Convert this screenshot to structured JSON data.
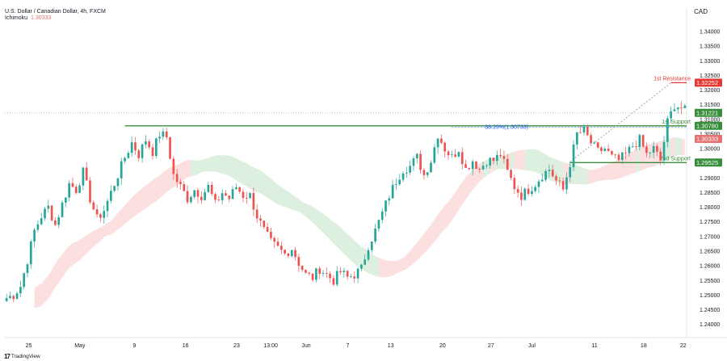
{
  "header": {
    "symbol_line": "U.S. Dollar / Canadian Dollar, 4h, FXCM",
    "indicator_name": "Ichimoku",
    "indicator_value": "1.30333"
  },
  "axis": {
    "currency": "CAD"
  },
  "brand": {
    "name": "TradingView"
  },
  "colors": {
    "up_candle": "#26a69a",
    "down_candle": "#ef5350",
    "support": "#388e3c",
    "resistance": "#e53935",
    "cloud_green": "#d7ecd9",
    "cloud_red": "#fbdada",
    "current_price_tag": "#388e3c",
    "ichimoku_tag": "#e57373"
  },
  "chart_data": {
    "type": "candlestick",
    "title": "U.S. Dollar / Canadian Dollar, 4h, FXCM",
    "ylabel": "CAD",
    "ylim": [
      1.2355,
      1.348
    ],
    "y_ticks": [
      1.34,
      1.335,
      1.33,
      1.325,
      1.32,
      1.315,
      1.31,
      1.305,
      1.3,
      1.295,
      1.29,
      1.285,
      1.28,
      1.275,
      1.27,
      1.265,
      1.26,
      1.255,
      1.25,
      1.245,
      1.24
    ],
    "y_tick_labels": [
      "1.34000",
      "1.33500",
      "1.33000",
      "1.32500",
      "1.32000",
      "1.31500",
      "1.31000",
      "1.30500",
      "1.30000",
      "1.29500",
      "1.29000",
      "1.28500",
      "1.28000",
      "1.27500",
      "1.27000",
      "1.26500",
      "1.26000",
      "1.25500",
      "1.25000",
      "1.24500",
      "1.24000"
    ],
    "x_ticks": [
      "25",
      "May",
      "9",
      "16",
      "23",
      "13:00",
      "Jun",
      "7",
      "13",
      "20",
      "27",
      "Jul",
      "11",
      "18",
      "22"
    ],
    "price_path": [
      [
        0,
        1.249
      ],
      [
        2,
        1.25
      ],
      [
        4,
        1.253
      ],
      [
        6,
        1.262
      ],
      [
        8,
        1.272
      ],
      [
        10,
        1.277
      ],
      [
        12,
        1.28
      ],
      [
        14,
        1.274
      ],
      [
        16,
        1.281
      ],
      [
        18,
        1.288
      ],
      [
        20,
        1.286
      ],
      [
        22,
        1.292
      ],
      [
        24,
        1.283
      ],
      [
        26,
        1.276
      ],
      [
        28,
        1.279
      ],
      [
        30,
        1.285
      ],
      [
        32,
        1.291
      ],
      [
        34,
        1.297
      ],
      [
        36,
        1.302
      ],
      [
        38,
        1.298
      ],
      [
        40,
        1.303
      ],
      [
        42,
        1.299
      ],
      [
        44,
        1.305
      ],
      [
        46,
        1.304
      ],
      [
        48,
        1.291
      ],
      [
        50,
        1.287
      ],
      [
        52,
        1.283
      ],
      [
        54,
        1.286
      ],
      [
        56,
        1.284
      ],
      [
        58,
        1.287
      ],
      [
        60,
        1.281
      ],
      [
        62,
        1.285
      ],
      [
        64,
        1.283
      ],
      [
        66,
        1.287
      ],
      [
        68,
        1.284
      ],
      [
        70,
        1.284
      ],
      [
        72,
        1.277
      ],
      [
        74,
        1.272
      ],
      [
        76,
        1.268
      ],
      [
        78,
        1.266
      ],
      [
        80,
        1.264
      ],
      [
        82,
        1.266
      ],
      [
        84,
        1.261
      ],
      [
        86,
        1.257
      ],
      [
        88,
        1.256
      ],
      [
        90,
        1.259
      ],
      [
        92,
        1.257
      ],
      [
        94,
        1.255
      ],
      [
        96,
        1.258
      ],
      [
        98,
        1.256
      ],
      [
        100,
        1.257
      ],
      [
        102,
        1.259
      ],
      [
        104,
        1.267
      ],
      [
        106,
        1.272
      ],
      [
        108,
        1.278
      ],
      [
        110,
        1.284
      ],
      [
        112,
        1.289
      ],
      [
        114,
        1.293
      ],
      [
        116,
        1.294
      ],
      [
        118,
        1.297
      ],
      [
        120,
        1.291
      ],
      [
        122,
        1.296
      ],
      [
        124,
        1.305
      ],
      [
        126,
        1.3
      ],
      [
        128,
        1.297
      ],
      [
        130,
        1.3
      ],
      [
        132,
        1.293
      ],
      [
        134,
        1.296
      ],
      [
        136,
        1.293
      ],
      [
        138,
        1.296
      ],
      [
        140,
        1.296
      ],
      [
        142,
        1.298
      ],
      [
        144,
        1.292
      ],
      [
        146,
        1.287
      ],
      [
        148,
        1.284
      ],
      [
        150,
        1.286
      ],
      [
        152,
        1.288
      ],
      [
        154,
        1.291
      ],
      [
        156,
        1.293
      ],
      [
        158,
        1.289
      ],
      [
        160,
        1.286
      ],
      [
        162,
        1.295
      ],
      [
        164,
        1.305
      ],
      [
        166,
        1.306
      ],
      [
        168,
        1.302
      ],
      [
        170,
        1.299
      ],
      [
        172,
        1.3
      ],
      [
        174,
        1.297
      ],
      [
        176,
        1.296
      ],
      [
        178,
        1.298
      ],
      [
        180,
        1.301
      ],
      [
        182,
        1.303
      ],
      [
        184,
        1.298
      ],
      [
        186,
        1.3
      ],
      [
        188,
        1.296
      ],
      [
        190,
        1.309
      ],
      [
        192,
        1.315
      ],
      [
        194,
        1.314
      ],
      [
        195,
        1.313
      ]
    ],
    "levels": [
      {
        "label": "1st Resistance",
        "value": 1.32252,
        "tag": "1.32252",
        "color": "#e53935"
      },
      {
        "label": "1st Support",
        "value": 1.3078,
        "tag": "1.30780",
        "color": "#388e3c"
      },
      {
        "label": "2nd Support",
        "value": 1.29525,
        "tag": "1.29525",
        "color": "#388e3c"
      }
    ],
    "fib_label": "38.20%(1.30733)",
    "current_price": {
      "value": 1.31221,
      "tag": "1.31221"
    },
    "ichimoku_price": {
      "value": 1.30333,
      "tag": "1.30333"
    }
  }
}
